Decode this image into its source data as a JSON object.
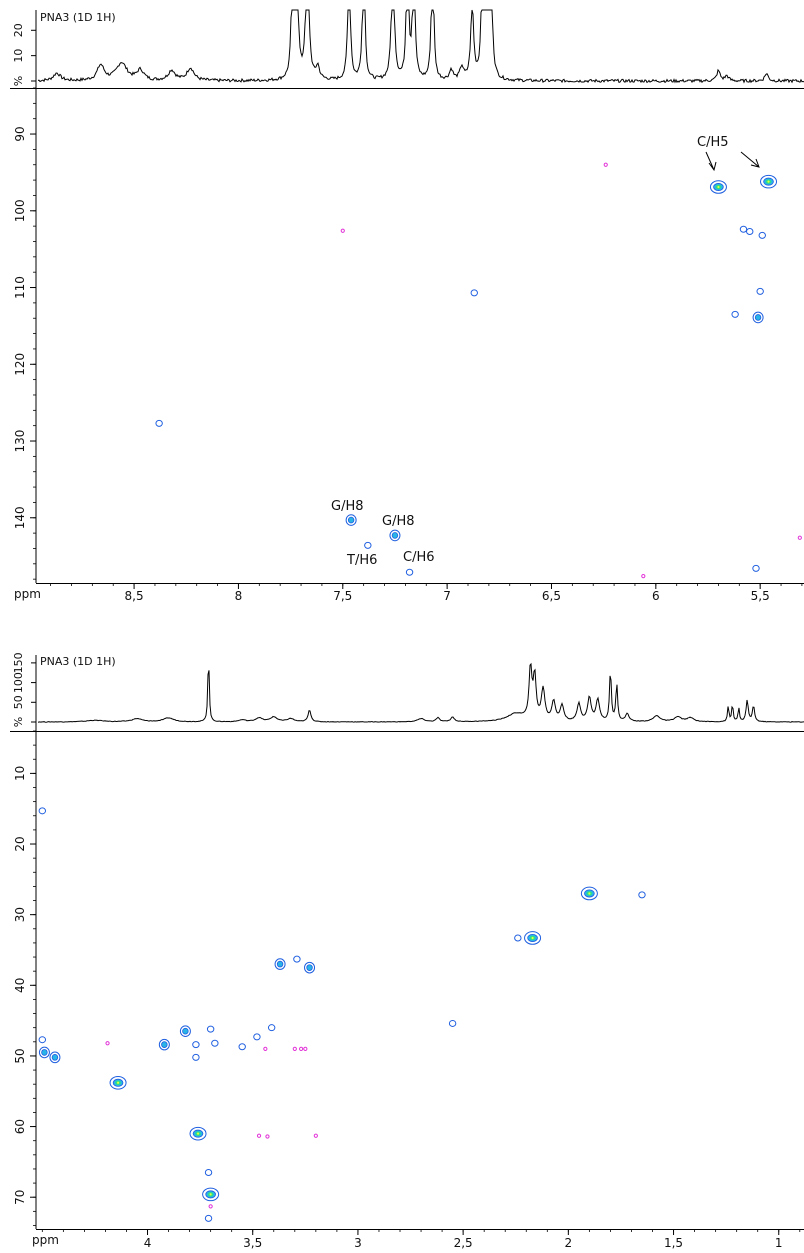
{
  "chart_data": [
    {
      "type": "scatter",
      "title": "PNA3 (1D 1H)",
      "xunit": "ppm",
      "xlim": [
        8.97,
        5.29
      ],
      "ylim": [
        84,
        148.5
      ],
      "xticks": [
        "8,5",
        "8",
        "7,5",
        "7",
        "6,5",
        "6",
        "5,5"
      ],
      "xtick_values": [
        8.5,
        8.0,
        7.5,
        7.0,
        6.5,
        6.0,
        5.5
      ],
      "yticks": [
        "90",
        "100",
        "110",
        "120",
        "130",
        "140"
      ],
      "ytick_values": [
        90,
        100,
        110,
        120,
        130,
        140
      ],
      "projection_ticks": [
        "20",
        "10",
        "%"
      ],
      "projection_tick_values": [
        20,
        10,
        0
      ],
      "peaks": [
        {
          "x": 5.7,
          "y": 96.9,
          "intensity": "strong"
        },
        {
          "x": 5.46,
          "y": 96.2,
          "intensity": "strong"
        },
        {
          "x": 5.58,
          "y": 102.4,
          "intensity": "weak"
        },
        {
          "x": 5.55,
          "y": 102.7,
          "intensity": "weak"
        },
        {
          "x": 5.49,
          "y": 103.2,
          "intensity": "weak"
        },
        {
          "x": 5.5,
          "y": 110.5,
          "intensity": "weak"
        },
        {
          "x": 5.62,
          "y": 113.5,
          "intensity": "weak"
        },
        {
          "x": 5.51,
          "y": 113.9,
          "intensity": "medium"
        },
        {
          "x": 8.38,
          "y": 127.7,
          "intensity": "weak"
        },
        {
          "x": 6.87,
          "y": 110.7,
          "intensity": "weak"
        },
        {
          "x": 7.46,
          "y": 140.3,
          "intensity": "medium"
        },
        {
          "x": 7.25,
          "y": 142.3,
          "intensity": "medium"
        },
        {
          "x": 7.38,
          "y": 143.6,
          "intensity": "weak"
        },
        {
          "x": 7.18,
          "y": 147.1,
          "intensity": "weak"
        },
        {
          "x": 5.52,
          "y": 146.6,
          "intensity": "weak"
        }
      ],
      "negative_peaks": [
        {
          "x": 6.24,
          "y": 94.0
        },
        {
          "x": 7.5,
          "y": 102.6
        },
        {
          "x": 6.06,
          "y": 147.6
        },
        {
          "x": 5.31,
          "y": 142.6
        }
      ],
      "annotations": [
        {
          "text": "C/H5"
        },
        {
          "text": "G/H8"
        },
        {
          "text": "G/H8"
        },
        {
          "text": "T/H6"
        },
        {
          "text": "C/H6"
        }
      ]
    },
    {
      "type": "scatter",
      "title": "PNA3 (1D 1H)",
      "xunit": "ppm",
      "xlim": [
        4.53,
        0.88
      ],
      "ylim": [
        4,
        74.5
      ],
      "xticks": [
        "4",
        "3,5",
        "3",
        "2,5",
        "2",
        "1,5",
        "1"
      ],
      "xtick_values": [
        4.0,
        3.5,
        3.0,
        2.5,
        2.0,
        1.5,
        1.0
      ],
      "yticks": [
        "10",
        "20",
        "30",
        "40",
        "50",
        "60",
        "70"
      ],
      "ytick_values": [
        10,
        20,
        30,
        40,
        50,
        60,
        70
      ],
      "projection_ticks": [
        "150",
        "100",
        "50",
        "%"
      ],
      "projection_tick_values": [
        150,
        100,
        50,
        0
      ],
      "peaks": [
        {
          "x": 4.5,
          "y": 15.3,
          "intensity": "weak"
        },
        {
          "x": 1.9,
          "y": 27.0,
          "intensity": "strong"
        },
        {
          "x": 1.65,
          "y": 27.2,
          "intensity": "weak"
        },
        {
          "x": 2.17,
          "y": 33.3,
          "intensity": "strong"
        },
        {
          "x": 2.24,
          "y": 33.3,
          "intensity": "weak"
        },
        {
          "x": 3.37,
          "y": 37.0,
          "intensity": "medium"
        },
        {
          "x": 3.29,
          "y": 36.3,
          "intensity": "weak"
        },
        {
          "x": 3.23,
          "y": 37.5,
          "intensity": "medium"
        },
        {
          "x": 2.55,
          "y": 45.4,
          "intensity": "weak"
        },
        {
          "x": 4.5,
          "y": 47.7,
          "intensity": "weak"
        },
        {
          "x": 4.49,
          "y": 49.5,
          "intensity": "medium"
        },
        {
          "x": 4.44,
          "y": 50.2,
          "intensity": "medium"
        },
        {
          "x": 4.14,
          "y": 53.8,
          "intensity": "strong"
        },
        {
          "x": 3.92,
          "y": 48.4,
          "intensity": "medium"
        },
        {
          "x": 3.82,
          "y": 46.5,
          "intensity": "medium"
        },
        {
          "x": 3.77,
          "y": 48.4,
          "intensity": "weak"
        },
        {
          "x": 3.77,
          "y": 50.2,
          "intensity": "weak"
        },
        {
          "x": 3.7,
          "y": 46.2,
          "intensity": "weak"
        },
        {
          "x": 3.68,
          "y": 48.2,
          "intensity": "weak"
        },
        {
          "x": 3.55,
          "y": 48.7,
          "intensity": "weak"
        },
        {
          "x": 3.48,
          "y": 47.3,
          "intensity": "weak"
        },
        {
          "x": 3.41,
          "y": 46.0,
          "intensity": "weak"
        },
        {
          "x": 3.76,
          "y": 61.0,
          "intensity": "strong"
        },
        {
          "x": 3.7,
          "y": 69.6,
          "intensity": "strong"
        },
        {
          "x": 3.71,
          "y": 66.5,
          "intensity": "weak"
        },
        {
          "x": 3.71,
          "y": 73.0,
          "intensity": "weak"
        }
      ],
      "negative_peaks": [
        {
          "x": 4.19,
          "y": 48.2
        },
        {
          "x": 3.44,
          "y": 49.0
        },
        {
          "x": 3.3,
          "y": 49.0
        },
        {
          "x": 3.27,
          "y": 49.0
        },
        {
          "x": 3.25,
          "y": 49.0
        },
        {
          "x": 3.47,
          "y": 61.3
        },
        {
          "x": 3.43,
          "y": 61.4
        },
        {
          "x": 3.2,
          "y": 61.3
        },
        {
          "x": 3.7,
          "y": 71.3
        }
      ],
      "annotations": []
    }
  ],
  "colors": {
    "axis": "#000000",
    "contour_low": "#1f5fe0",
    "contour_mid": "#29b4e8",
    "contour_high": "#2fe08a",
    "contour_core": "#e6ff3a",
    "negative": "#e233d8"
  }
}
